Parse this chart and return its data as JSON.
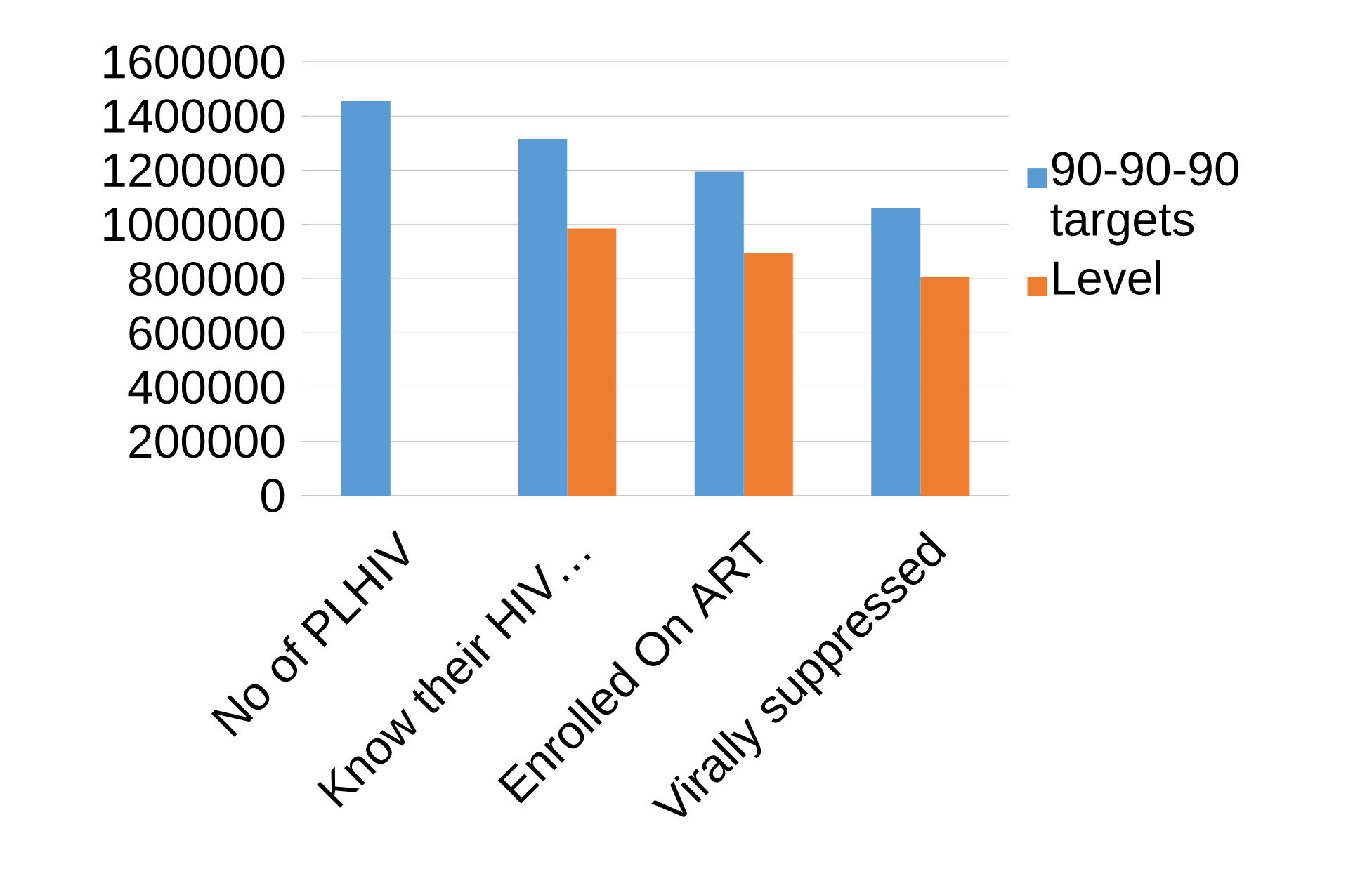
{
  "chart_data": {
    "type": "bar",
    "categories": [
      "No of PLHIV",
      "Know their HIV…",
      "Enrolled On ART",
      "Virally suppressed"
    ],
    "series": [
      {
        "name": "90-90-90 targets",
        "color": "#5b9bd5",
        "values": [
          1455000,
          1315000,
          1195000,
          1060000
        ]
      },
      {
        "name": "Level",
        "color": "#ed7d31",
        "values": [
          null,
          985000,
          895000,
          805000
        ]
      }
    ],
    "ylim": [
      0,
      1600000
    ],
    "yticks": [
      0,
      200000,
      400000,
      600000,
      800000,
      1000000,
      1200000,
      1400000,
      1600000
    ],
    "grid": "y",
    "legend": "right"
  }
}
